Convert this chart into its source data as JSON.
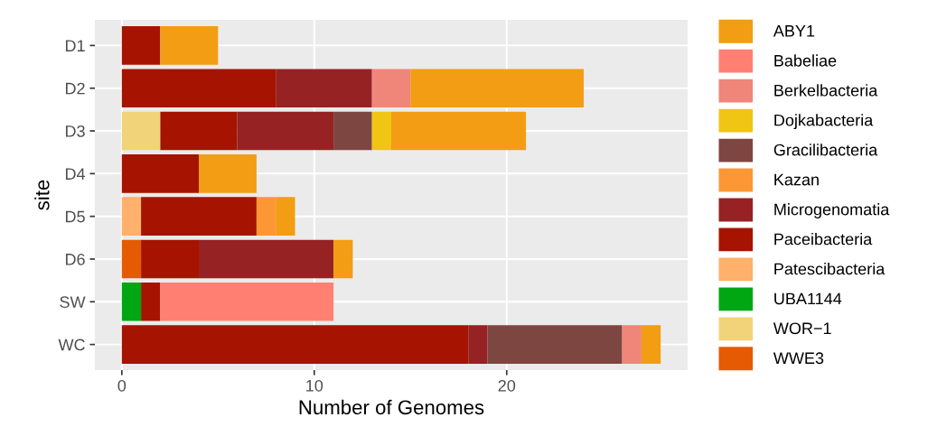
{
  "chart_data": {
    "type": "bar",
    "orientation": "horizontal",
    "stacked": true,
    "xlabel": "Number of Genomes",
    "ylabel": "site",
    "categories": [
      "D1",
      "D2",
      "D3",
      "D4",
      "D5",
      "D6",
      "SW",
      "WC"
    ],
    "xlim": [
      -1.4,
      29.4
    ],
    "xticks": [
      0,
      10,
      20
    ],
    "grid": true,
    "legend": "right",
    "series": [
      {
        "name": "WWE3",
        "color": "#e45b03",
        "values": [
          null,
          null,
          null,
          null,
          null,
          1,
          null,
          null
        ]
      },
      {
        "name": "WOR−1",
        "color": "#f1d47a",
        "values": [
          null,
          null,
          2,
          null,
          null,
          null,
          null,
          null
        ]
      },
      {
        "name": "UBA1144",
        "color": "#00a713",
        "values": [
          null,
          null,
          null,
          null,
          null,
          null,
          1,
          null
        ]
      },
      {
        "name": "Patescibacteria",
        "color": "#ffb06a",
        "values": [
          null,
          null,
          null,
          null,
          1,
          null,
          null,
          null
        ]
      },
      {
        "name": "Paceibacteria",
        "color": "#a61300",
        "values": [
          2,
          8,
          4,
          4,
          6,
          3,
          1,
          18
        ]
      },
      {
        "name": "Microgenomatia",
        "color": "#962224",
        "values": [
          null,
          5,
          5,
          null,
          null,
          7,
          null,
          1
        ]
      },
      {
        "name": "Kazan",
        "color": "#fd9735",
        "values": [
          null,
          null,
          null,
          null,
          1,
          null,
          null,
          null
        ]
      },
      {
        "name": "Gracilibacteria",
        "color": "#7e4641",
        "values": [
          null,
          null,
          2,
          null,
          null,
          null,
          null,
          7
        ]
      },
      {
        "name": "Dojkabacteria",
        "color": "#f0c514",
        "values": [
          null,
          null,
          1,
          null,
          null,
          null,
          null,
          null
        ]
      },
      {
        "name": "Berkelbacteria",
        "color": "#f0857a",
        "values": [
          null,
          2,
          null,
          null,
          null,
          null,
          null,
          1
        ]
      },
      {
        "name": "Babeliae",
        "color": "#ff8072",
        "values": [
          null,
          null,
          null,
          null,
          null,
          null,
          9,
          null
        ]
      },
      {
        "name": "ABY1",
        "color": "#f29d13",
        "values": [
          3,
          9,
          7,
          3,
          1,
          1,
          null,
          1
        ]
      }
    ]
  }
}
